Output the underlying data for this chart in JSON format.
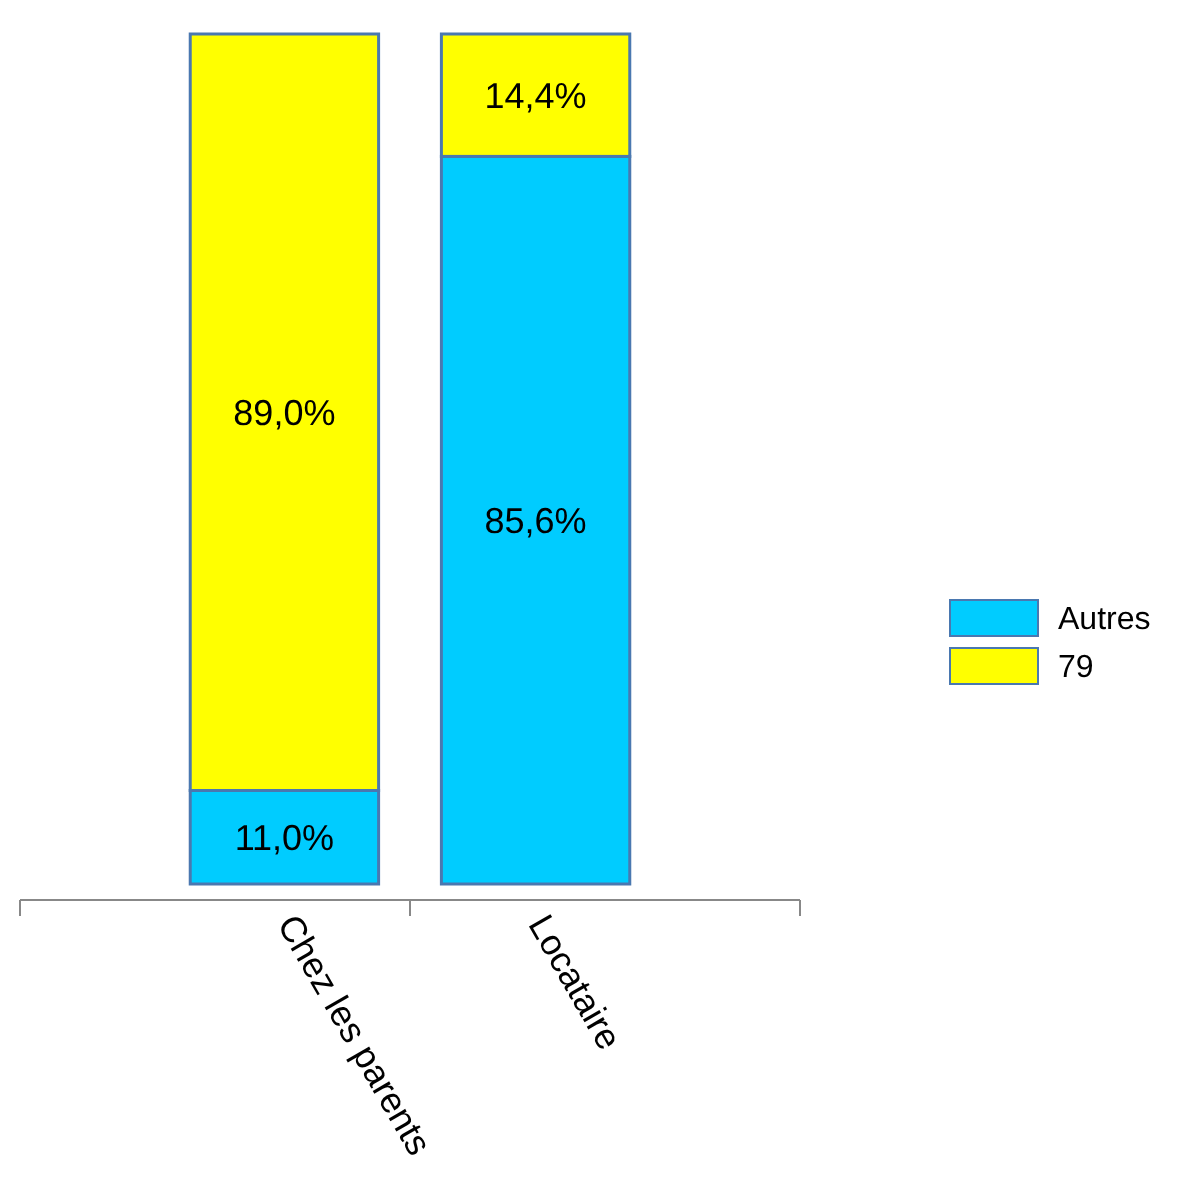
{
  "chart_data": {
    "type": "bar",
    "stacked": true,
    "categories": [
      "Chez les parents",
      "Locataire"
    ],
    "series": [
      {
        "name": "Autres",
        "color": "#00ccff",
        "values": [
          11.0,
          85.6
        ],
        "value_labels": [
          "11,0%",
          "85,6%"
        ]
      },
      {
        "name": "79",
        "color": "#ffff00",
        "values": [
          89.0,
          14.4
        ],
        "value_labels": [
          "89,0%",
          "14,4%"
        ]
      }
    ],
    "legend": "right",
    "grid": false
  }
}
